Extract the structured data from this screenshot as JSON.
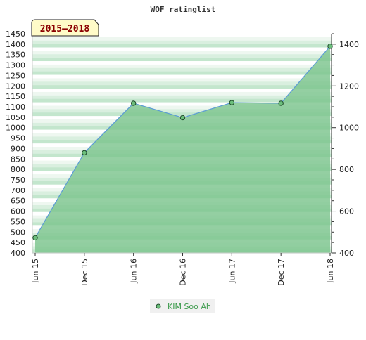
{
  "chart_data": {
    "type": "area",
    "title": "WOF ratinglist",
    "period_label": "2015–2018",
    "categories": [
      "Jun 15",
      "Dec 15",
      "Jun 16",
      "Dec 16",
      "Jun 17",
      "Dec 17",
      "Jun 18"
    ],
    "series": [
      {
        "name": "KIM Soo Ah",
        "values": [
          473,
          880,
          1117,
          1048,
          1120,
          1117,
          1390
        ]
      }
    ],
    "y_left": {
      "min": 400,
      "max": 1450,
      "step": 50,
      "ticks": [
        "400",
        "450",
        "500",
        "550",
        "600",
        "650",
        "700",
        "750",
        "800",
        "850",
        "900",
        "950",
        "1000",
        "1050",
        "1100",
        "1150",
        "1200",
        "1250",
        "1300",
        "1350",
        "1400",
        "1450"
      ]
    },
    "y_right": {
      "ticks": [
        "400",
        "600",
        "800",
        "1000",
        "1200",
        "1400"
      ]
    },
    "legend_position": "bottom-center",
    "grid": true,
    "colors": {
      "area_fill": "#7cc48e",
      "line": "#5b9bd5",
      "marker_fill": "#6cbf7c",
      "marker_stroke": "#1e4a2a",
      "period_bg": "#fffbc8",
      "legend_text": "#3a9a4a"
    }
  }
}
